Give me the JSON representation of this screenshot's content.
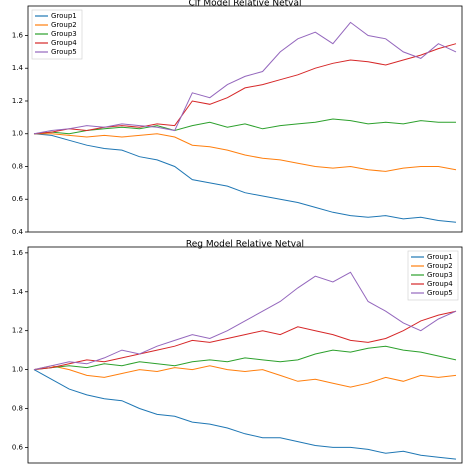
{
  "chart_data": [
    {
      "type": "line",
      "title": "Clf Model Relative Netval",
      "legend": "upper left",
      "ylim": [
        0.4,
        1.78
      ],
      "yticks": [
        {
          "value": 0.4,
          "label": "0.4"
        },
        {
          "value": 0.6,
          "label": "0.6"
        },
        {
          "value": 0.8,
          "label": "0.8"
        },
        {
          "value": 1.0,
          "label": "1.0"
        },
        {
          "value": 1.2,
          "label": "1.2"
        },
        {
          "value": 1.4,
          "label": "1.4"
        },
        {
          "value": 1.6,
          "label": "1.6"
        }
      ],
      "series": [
        {
          "name": "Group1",
          "color": "#1f77b4",
          "values": [
            1.0,
            0.99,
            0.96,
            0.93,
            0.91,
            0.9,
            0.86,
            0.84,
            0.8,
            0.72,
            0.7,
            0.68,
            0.64,
            0.62,
            0.6,
            0.58,
            0.55,
            0.52,
            0.5,
            0.49,
            0.5,
            0.48,
            0.49,
            0.47,
            0.46
          ]
        },
        {
          "name": "Group2",
          "color": "#ff7f0e",
          "values": [
            1.0,
            1.0,
            0.99,
            0.98,
            0.99,
            0.98,
            0.99,
            1.0,
            0.98,
            0.93,
            0.92,
            0.9,
            0.87,
            0.85,
            0.84,
            0.82,
            0.8,
            0.79,
            0.8,
            0.78,
            0.77,
            0.79,
            0.8,
            0.8,
            0.78
          ]
        },
        {
          "name": "Group3",
          "color": "#2ca02c",
          "values": [
            1.0,
            1.01,
            1.0,
            1.02,
            1.03,
            1.04,
            1.03,
            1.05,
            1.02,
            1.05,
            1.07,
            1.04,
            1.06,
            1.03,
            1.05,
            1.06,
            1.07,
            1.09,
            1.08,
            1.06,
            1.07,
            1.06,
            1.08,
            1.07,
            1.07
          ]
        },
        {
          "name": "Group4",
          "color": "#d62728",
          "values": [
            1.0,
            1.01,
            1.03,
            1.02,
            1.04,
            1.05,
            1.04,
            1.06,
            1.05,
            1.2,
            1.18,
            1.22,
            1.28,
            1.3,
            1.33,
            1.36,
            1.4,
            1.43,
            1.45,
            1.44,
            1.42,
            1.45,
            1.48,
            1.52,
            1.55
          ]
        },
        {
          "name": "Group5",
          "color": "#9467bd",
          "values": [
            1.0,
            1.02,
            1.03,
            1.05,
            1.04,
            1.06,
            1.05,
            1.04,
            1.02,
            1.25,
            1.22,
            1.3,
            1.35,
            1.38,
            1.5,
            1.58,
            1.62,
            1.55,
            1.68,
            1.6,
            1.58,
            1.5,
            1.46,
            1.55,
            1.5
          ]
        }
      ]
    },
    {
      "type": "line",
      "title": "Reg Model Relative Netval",
      "legend": "upper right",
      "ylim": [
        0.52,
        1.63
      ],
      "yticks": [
        {
          "value": 0.6,
          "label": "0.6"
        },
        {
          "value": 0.8,
          "label": "0.8"
        },
        {
          "value": 1.0,
          "label": "1.0"
        },
        {
          "value": 1.2,
          "label": "1.2"
        },
        {
          "value": 1.4,
          "label": "1.4"
        },
        {
          "value": 1.6,
          "label": "1.6"
        }
      ],
      "series": [
        {
          "name": "Group1",
          "color": "#1f77b4",
          "values": [
            1.0,
            0.95,
            0.9,
            0.87,
            0.85,
            0.84,
            0.8,
            0.77,
            0.76,
            0.73,
            0.72,
            0.7,
            0.67,
            0.65,
            0.65,
            0.63,
            0.61,
            0.6,
            0.6,
            0.59,
            0.57,
            0.58,
            0.56,
            0.55,
            0.54
          ]
        },
        {
          "name": "Group2",
          "color": "#ff7f0e",
          "values": [
            1.0,
            1.02,
            1.0,
            0.97,
            0.96,
            0.98,
            1.0,
            0.99,
            1.01,
            1.0,
            1.02,
            1.0,
            0.99,
            1.0,
            0.97,
            0.94,
            0.95,
            0.93,
            0.91,
            0.93,
            0.96,
            0.94,
            0.97,
            0.96,
            0.97
          ]
        },
        {
          "name": "Group3",
          "color": "#2ca02c",
          "values": [
            1.0,
            1.01,
            1.02,
            1.01,
            1.03,
            1.02,
            1.04,
            1.03,
            1.02,
            1.04,
            1.05,
            1.04,
            1.06,
            1.05,
            1.04,
            1.05,
            1.08,
            1.1,
            1.09,
            1.11,
            1.12,
            1.1,
            1.09,
            1.07,
            1.05
          ]
        },
        {
          "name": "Group4",
          "color": "#d62728",
          "values": [
            1.0,
            1.01,
            1.03,
            1.05,
            1.04,
            1.06,
            1.08,
            1.1,
            1.12,
            1.15,
            1.14,
            1.16,
            1.18,
            1.2,
            1.18,
            1.22,
            1.2,
            1.18,
            1.15,
            1.14,
            1.16,
            1.2,
            1.25,
            1.28,
            1.3
          ]
        },
        {
          "name": "Group5",
          "color": "#9467bd",
          "values": [
            1.0,
            1.02,
            1.04,
            1.03,
            1.06,
            1.1,
            1.08,
            1.12,
            1.15,
            1.18,
            1.16,
            1.2,
            1.25,
            1.3,
            1.35,
            1.42,
            1.48,
            1.45,
            1.5,
            1.35,
            1.3,
            1.24,
            1.2,
            1.26,
            1.3
          ]
        }
      ]
    }
  ]
}
